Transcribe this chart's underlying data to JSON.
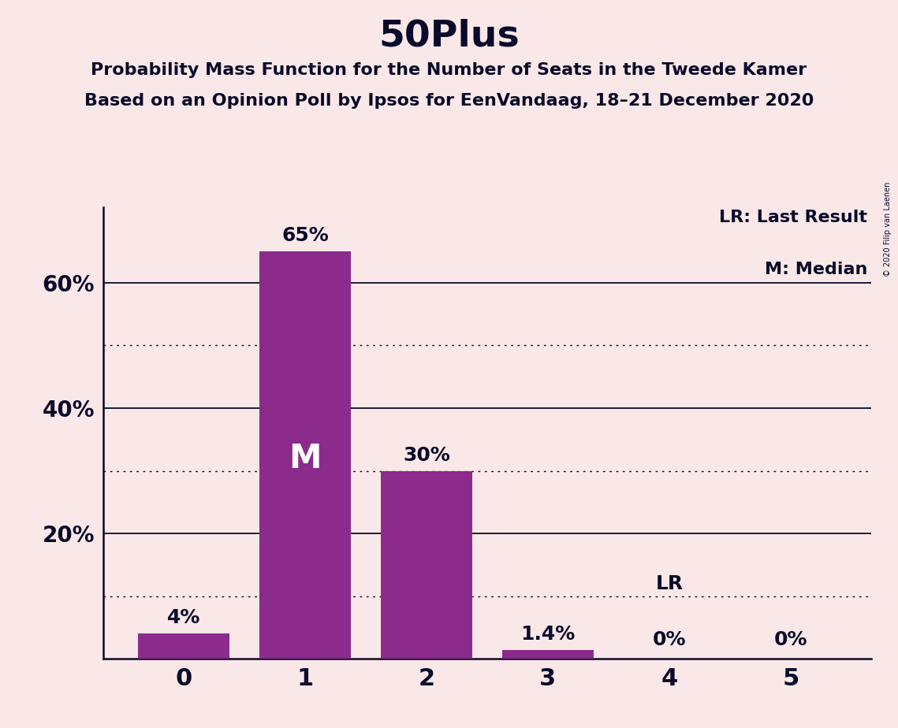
{
  "title": "50Plus",
  "subtitle1": "Probability Mass Function for the Number of Seats in the Tweede Kamer",
  "subtitle2": "Based on an Opinion Poll by Ipsos for EenVandaag, 18–21 December 2020",
  "copyright_text": "© 2020 Filip van Laenen",
  "categories": [
    0,
    1,
    2,
    3,
    4,
    5
  ],
  "values": [
    4.0,
    65.0,
    30.0,
    1.4,
    0.0,
    0.0
  ],
  "bar_labels": [
    "4%",
    "65%",
    "30%",
    "1.4%",
    "0%",
    "0%"
  ],
  "median_bar": 1,
  "last_result_bar": 4,
  "bar_color": "#8B2B8B",
  "background_color": "#FAE8E8",
  "text_color": "#0A0A2A",
  "ylim": [
    0,
    72
  ],
  "yticks": [
    20,
    40,
    60
  ],
  "ytick_labels": [
    "20%",
    "40%",
    "60%"
  ],
  "solid_lines": [
    20,
    40,
    60
  ],
  "dotted_lines": [
    10,
    30,
    50
  ],
  "legend_lr": "LR: Last Result",
  "legend_m": "M: Median",
  "median_label": "M",
  "lr_label": "LR"
}
